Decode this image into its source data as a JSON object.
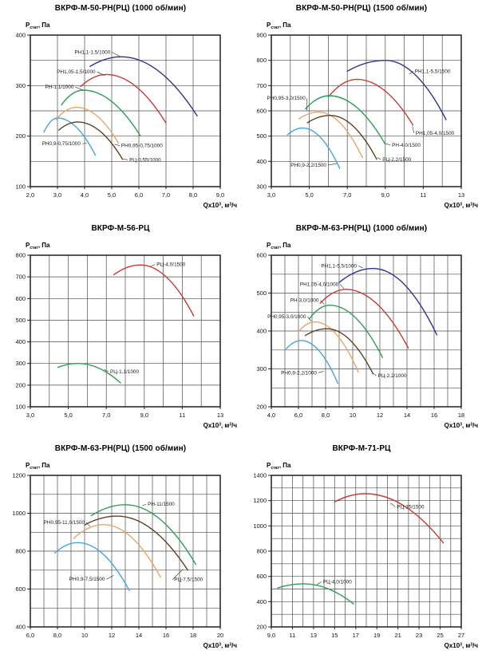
{
  "page": {
    "background": "#ffffff"
  },
  "axis_labels": {
    "y_full": "Рстат, Па",
    "y_main": "Р",
    "y_sub": "стат",
    "y_tail": ", Па",
    "x_full": "Qx10³, м³/ч",
    "x_a": "Qx10",
    "x_sup1": "3",
    "x_b": ", м",
    "x_sup2": "3",
    "x_c": "/ч"
  },
  "style": {
    "grid_color": "#4d4d4d",
    "frame_color": "#1f1f1f",
    "tick_text_color": "#111111",
    "series_label_color": "#1c1c1c",
    "leader_color": "#333333",
    "series_colors": {
      "navy": "#2e3192",
      "red": "#c43a34",
      "green": "#2c9e57",
      "orange": "#e7a566",
      "cyan": "#45a5db",
      "brown": "#5a4020"
    }
  },
  "chart_data": [
    {
      "type": "line",
      "title": "ВКРФ-М-50-РН(РЦ) (1000 об/мин)",
      "ylabel": "Рстат, Па",
      "xlabel": "Qx10³, м³/ч",
      "x_range": [
        2,
        9
      ],
      "y_range": [
        100,
        400
      ],
      "x_grid_step": 1,
      "y_grid_step": 50,
      "x_tick_labels": [
        "2,0",
        "3,0",
        "4,0",
        "5,0",
        "6,0",
        "7,0",
        "8,0",
        "9,0"
      ],
      "y_tick_labels": [
        "100",
        "200",
        "300",
        "400"
      ],
      "series": [
        {
          "name": "РН1,1-1,5/1000",
          "color_key": "navy",
          "points": [
            [
              4.2,
              338
            ],
            [
              5.35,
              357
            ],
            [
              8.15,
              240
            ]
          ],
          "label": {
            "x": 4.95,
            "y": 366,
            "align": "end",
            "lead": [
              5.3,
              358
            ]
          }
        },
        {
          "name": "РН1,05-1,5/1000",
          "color_key": "red",
          "points": [
            [
              3.85,
              298
            ],
            [
              4.8,
              322
            ],
            [
              7.0,
              226
            ]
          ],
          "label": {
            "x": 4.4,
            "y": 327,
            "align": "end",
            "lead": [
              4.75,
              320
            ]
          }
        },
        {
          "name": "РН-1,1/1000",
          "color_key": "green",
          "points": [
            [
              3.15,
              262
            ],
            [
              3.95,
              291
            ],
            [
              6.05,
              201
            ]
          ],
          "label": {
            "x": 3.6,
            "y": 297,
            "align": "end",
            "lead": [
              3.95,
              291
            ]
          }
        },
        {
          "name": "РН0,95-0,75/1000",
          "color_key": "orange",
          "points": [
            [
              2.95,
              233
            ],
            [
              3.7,
              257
            ],
            [
              5.25,
              186
            ]
          ],
          "label": {
            "x": 5.35,
            "y": 181,
            "align": "start",
            "lead": [
              5.1,
              184
            ]
          }
        },
        {
          "name": "РН0,9-0,75/1000",
          "color_key": "cyan",
          "points": [
            [
              2.5,
              208
            ],
            [
              3.0,
              236
            ],
            [
              4.4,
              162
            ]
          ],
          "label": {
            "x": 3.85,
            "y": 185,
            "align": "end",
            "lead": [
              4.08,
              186
            ]
          }
        },
        {
          "name": "РЦ-0,55/1000",
          "color_key": "brown",
          "points": [
            [
              3.05,
              212
            ],
            [
              3.75,
              228
            ],
            [
              5.4,
              154
            ]
          ],
          "label": {
            "x": 5.65,
            "y": 153,
            "align": "start",
            "lead": [
              5.42,
              155
            ]
          }
        }
      ]
    },
    {
      "type": "line",
      "title": "ВКРФ-М-50-РН(РЦ) (1500 об/мин)",
      "ylabel": "Рстат, Па",
      "xlabel": "Qx10³, м³/ч",
      "x_range": [
        3,
        13
      ],
      "y_range": [
        300,
        900
      ],
      "x_grid_step": 1,
      "y_grid_step": 100,
      "x_tick_labels": [
        "3,0",
        "5,0",
        "7,0",
        "9,0",
        "11",
        "13"
      ],
      "y_tick_labels": [
        "300",
        "400",
        "500",
        "600",
        "700",
        "800",
        "900"
      ],
      "series": [
        {
          "name": "РН1,1-5,5/1500",
          "color_key": "navy",
          "points": [
            [
              7.0,
              757
            ],
            [
              9.0,
              800
            ],
            [
              12.2,
              565
            ]
          ],
          "label": {
            "x": 10.55,
            "y": 757,
            "align": "start",
            "lead": [
              10.25,
              745
            ]
          }
        },
        {
          "name": "РН1,05-4,0/1500",
          "color_key": "red",
          "points": [
            [
              6.0,
              655
            ],
            [
              7.5,
              725
            ],
            [
              10.45,
              545
            ]
          ],
          "label": {
            "x": 10.6,
            "y": 512,
            "align": "start",
            "lead": [
              10.42,
              542
            ]
          }
        },
        {
          "name": "РН-4,0/1500",
          "color_key": "green",
          "points": [
            [
              4.8,
              608
            ],
            [
              6.05,
              660
            ],
            [
              9.0,
              468
            ]
          ],
          "label": {
            "x": 9.35,
            "y": 465,
            "align": "start",
            "lead": [
              9.02,
              470
            ]
          }
        },
        {
          "name": "РН0,95-3,0/1500",
          "color_key": "orange",
          "points": [
            [
              4.45,
              568
            ],
            [
              5.5,
              595
            ],
            [
              7.8,
              415
            ]
          ],
          "label": {
            "x": 4.8,
            "y": 650,
            "align": "end",
            "lead": [
              4.88,
              600
            ]
          }
        },
        {
          "name": "РЦ-2,2/1500",
          "color_key": "brown",
          "points": [
            [
              4.9,
              553
            ],
            [
              6.1,
              582
            ],
            [
              8.55,
              408
            ]
          ],
          "label": {
            "x": 8.85,
            "y": 408,
            "align": "start",
            "lead": [
              8.58,
              415
            ]
          }
        },
        {
          "name": "РН0,9-2,2/1500",
          "color_key": "cyan",
          "points": [
            [
              3.85,
              505
            ],
            [
              4.65,
              532
            ],
            [
              6.6,
              372
            ]
          ],
          "label": {
            "x": 5.9,
            "y": 385,
            "align": "end",
            "lead": [
              6.45,
              392
            ]
          }
        }
      ]
    },
    {
      "type": "line",
      "title": "ВКРФ-М-56-РЦ",
      "ylabel": "Рстат, Па",
      "xlabel": "Qx10³, м³/ч",
      "x_range": [
        3,
        13
      ],
      "y_range": [
        100,
        800
      ],
      "x_grid_step": 1,
      "y_grid_step": 100,
      "x_tick_labels": [
        "3,0",
        "5,0",
        "7,0",
        "9,0",
        "11",
        "13"
      ],
      "y_tick_labels": [
        "100",
        "200",
        "300",
        "400",
        "500",
        "600",
        "700",
        "800"
      ],
      "series": [
        {
          "name": "РЦ-4,0/1500",
          "color_key": "red",
          "points": [
            [
              7.4,
              710
            ],
            [
              8.8,
              755
            ],
            [
              11.6,
              520
            ]
          ],
          "label": {
            "x": 9.65,
            "y": 757,
            "align": "start",
            "lead": [
              9.35,
              750
            ]
          }
        },
        {
          "name": "РЦ-1,1/1000",
          "color_key": "green",
          "points": [
            [
              4.45,
              282
            ],
            [
              5.5,
              300
            ],
            [
              7.75,
              210
            ]
          ],
          "label": {
            "x": 7.2,
            "y": 262,
            "align": "start",
            "lead": [
              6.9,
              272
            ]
          }
        }
      ]
    },
    {
      "type": "line",
      "title": "ВКРФ-М-63-РН(РЦ) (1000 об/мин)",
      "ylabel": "Рстат, Па",
      "xlabel": "Qx10³, м³/ч",
      "x_range": [
        4,
        18
      ],
      "y_range": [
        200,
        600
      ],
      "x_grid_step": 1,
      "y_grid_step": 50,
      "x_tick_labels": [
        "4,0",
        "6,0",
        "8,0",
        "10",
        "12",
        "14",
        "16",
        "18"
      ],
      "y_tick_labels": [
        "200",
        "300",
        "400",
        "500",
        "600"
      ],
      "series": [
        {
          "name": "РН1,1-5,5/1000",
          "color_key": "navy",
          "points": [
            [
              9.0,
              528
            ],
            [
              11.5,
              565
            ],
            [
              16.2,
              390
            ]
          ],
          "label": {
            "x": 10.3,
            "y": 572,
            "align": "end",
            "lead": [
              10.75,
              566
            ]
          }
        },
        {
          "name": "РН1,05-4,0/1000",
          "color_key": "red",
          "points": [
            [
              7.6,
              473
            ],
            [
              9.5,
              510
            ],
            [
              14.1,
              355
            ]
          ],
          "label": {
            "x": 8.95,
            "y": 523,
            "align": "end",
            "lead": [
              9.35,
              512
            ]
          }
        },
        {
          "name": "РН-3,0/1000",
          "color_key": "green",
          "points": [
            [
              6.8,
              432
            ],
            [
              8.3,
              468
            ],
            [
              12.2,
              330
            ]
          ],
          "label": {
            "x": 7.5,
            "y": 481,
            "align": "end",
            "lead": [
              7.9,
              470
            ]
          }
        },
        {
          "name": "РН0,95-3,0/1000",
          "color_key": "orange",
          "points": [
            [
              6.0,
              398
            ],
            [
              7.2,
              424
            ],
            [
              10.4,
              292
            ]
          ],
          "label": {
            "x": 6.55,
            "y": 438,
            "align": "end",
            "lead": [
              6.95,
              426
            ]
          }
        },
        {
          "name": "РЦ-2,2/1000",
          "color_key": "brown",
          "points": [
            [
              6.5,
              388
            ],
            [
              8.1,
              406
            ],
            [
              11.5,
              287
            ]
          ],
          "label": {
            "x": 11.85,
            "y": 282,
            "align": "start",
            "lead": [
              11.52,
              288
            ]
          }
        },
        {
          "name": "РН0,9-2,2/1000",
          "color_key": "cyan",
          "points": [
            [
              5.1,
              353
            ],
            [
              6.2,
              375
            ],
            [
              8.9,
              262
            ]
          ],
          "label": {
            "x": 7.35,
            "y": 290,
            "align": "end",
            "lead": [
              7.85,
              294
            ]
          }
        }
      ]
    },
    {
      "type": "line",
      "title": "ВКРФ-М-63-РН(РЦ) (1500 об/мин)",
      "ylabel": "Рстат, Па",
      "xlabel": "Qx10³, м³/ч",
      "x_range": [
        6,
        20
      ],
      "y_range": [
        400,
        1200
      ],
      "x_grid_step": 1,
      "y_grid_step": 100,
      "x_tick_labels": [
        "6,0",
        "8,0",
        "10",
        "12",
        "14",
        "16",
        "18",
        "20"
      ],
      "y_tick_labels": [
        "400",
        "600",
        "800",
        "1000",
        "1200"
      ],
      "series": [
        {
          "name": "РН-11/1500",
          "color_key": "green",
          "points": [
            [
              10.5,
              988
            ],
            [
              13.0,
              1045
            ],
            [
              18.2,
              730
            ]
          ],
          "label": {
            "x": 14.65,
            "y": 1048,
            "align": "start",
            "lead": [
              14.25,
              1040
            ]
          }
        },
        {
          "name": "РЦ-7,5/1500",
          "color_key": "brown",
          "points": [
            [
              10.0,
              938
            ],
            [
              12.4,
              985
            ],
            [
              17.6,
              700
            ]
          ],
          "label": {
            "x": 16.6,
            "y": 650,
            "align": "start",
            "lead": [
              17.25,
              705
            ]
          }
        },
        {
          "name": "РН0,95-11,0/1500",
          "color_key": "orange",
          "points": [
            [
              9.2,
              868
            ],
            [
              11.4,
              940
            ],
            [
              15.6,
              662
            ]
          ],
          "label": {
            "x": 10.0,
            "y": 952,
            "align": "end",
            "lead": [
              10.4,
              930
            ]
          }
        },
        {
          "name": "РН0,9-7,5/1500",
          "color_key": "cyan",
          "points": [
            [
              7.8,
              790
            ],
            [
              9.5,
              845
            ],
            [
              13.3,
              592
            ]
          ],
          "label": {
            "x": 11.5,
            "y": 652,
            "align": "end",
            "lead": [
              12.15,
              672
            ]
          }
        }
      ]
    },
    {
      "type": "line",
      "title": "ВКРФ-М-71-РЦ",
      "ylabel": "Рстат, Па",
      "xlabel": "Qx10³, м³/ч",
      "x_range": [
        9,
        27
      ],
      "y_range": [
        200,
        1400
      ],
      "x_grid_step": 1,
      "y_grid_step": 100,
      "x_tick_labels": [
        "9,0",
        "11",
        "13",
        "15",
        "17",
        "19",
        "21",
        "23",
        "25",
        "27"
      ],
      "y_tick_labels": [
        "200",
        "400",
        "600",
        "800",
        "1000",
        "1200",
        "1400"
      ],
      "series": [
        {
          "name": "РЦ-15/1500",
          "color_key": "red",
          "points": [
            [
              15.0,
              1190
            ],
            [
              17.9,
              1255
            ],
            [
              25.3,
              865
            ]
          ],
          "label": {
            "x": 20.9,
            "y": 1150,
            "align": "start",
            "lead": [
              20.3,
              1182
            ]
          }
        },
        {
          "name": "РЦ-4,0/1000",
          "color_key": "green",
          "points": [
            [
              9.6,
              508
            ],
            [
              12.0,
              542
            ],
            [
              16.8,
              382
            ]
          ],
          "label": {
            "x": 13.9,
            "y": 558,
            "align": "start",
            "lead": [
              13.3,
              532
            ]
          }
        }
      ]
    }
  ]
}
